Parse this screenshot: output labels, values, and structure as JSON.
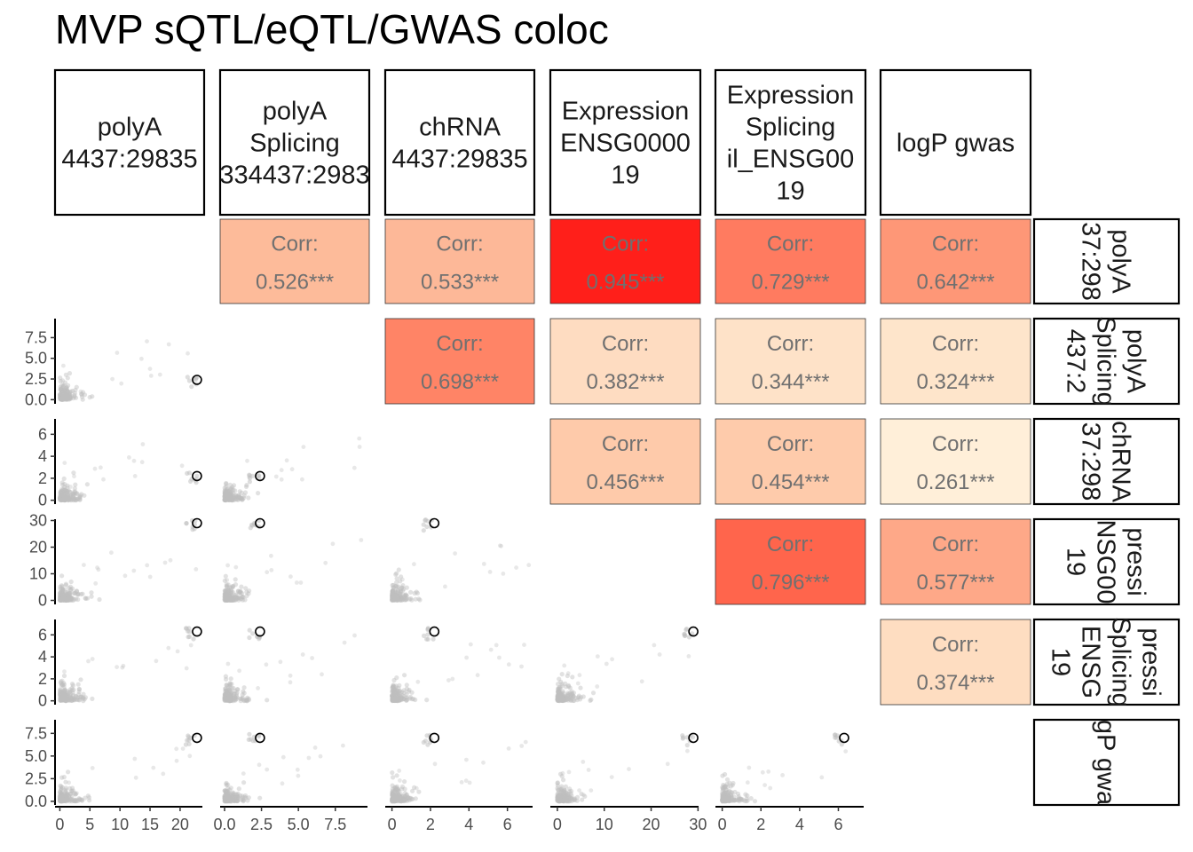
{
  "title": "MVP sQTL/eQTL/GWAS coloc",
  "chart_data": {
    "type": "scatter-matrix",
    "title": "MVP sQTL/eQTL/GWAS coloc",
    "variables": [
      {
        "label_lines": [
          "polyA",
          "4437:29835"
        ]
      },
      {
        "label_lines": [
          "polyA",
          "Splicing",
          "334437:2983"
        ]
      },
      {
        "label_lines": [
          "chRNA",
          "4437:29835"
        ]
      },
      {
        "label_lines": [
          "Expression",
          "ENSG0000",
          "19"
        ]
      },
      {
        "label_lines": [
          "Expression",
          "Splicing",
          "il_ENSG00",
          "19"
        ]
      },
      {
        "label_lines": [
          "logP gwas"
        ]
      }
    ],
    "row_strip_lines": [
      [
        "polyA",
        "37:298"
      ],
      [
        "polyA",
        "Splicing",
        "437:2"
      ],
      [
        "chRNA",
        "37:298"
      ],
      [
        "pressi",
        "NSG00",
        "19"
      ],
      [
        "pressi",
        "Splicing",
        "ENSG",
        "19"
      ],
      [
        "gP gwa"
      ]
    ],
    "upper_label": "Corr:",
    "correlations": [
      {
        "row": 0,
        "col": 1,
        "text": "0.526***",
        "value": 0.526,
        "fill": "#fdbb9a"
      },
      {
        "row": 0,
        "col": 2,
        "text": "0.533***",
        "value": 0.533,
        "fill": "#fdb898"
      },
      {
        "row": 0,
        "col": 3,
        "text": "0.945***",
        "value": 0.945,
        "fill": "#ff1f1a"
      },
      {
        "row": 0,
        "col": 4,
        "text": "0.729***",
        "value": 0.729,
        "fill": "#ff7b60"
      },
      {
        "row": 0,
        "col": 5,
        "text": "0.642***",
        "value": 0.642,
        "fill": "#fe9777"
      },
      {
        "row": 1,
        "col": 2,
        "text": "0.698***",
        "value": 0.698,
        "fill": "#ff8466"
      },
      {
        "row": 1,
        "col": 3,
        "text": "0.382***",
        "value": 0.382,
        "fill": "#fedcc1"
      },
      {
        "row": 1,
        "col": 4,
        "text": "0.344***",
        "value": 0.344,
        "fill": "#fee2c8"
      },
      {
        "row": 1,
        "col": 5,
        "text": "0.324***",
        "value": 0.324,
        "fill": "#fee5cb"
      },
      {
        "row": 2,
        "col": 3,
        "text": "0.456***",
        "value": 0.456,
        "fill": "#fecaaa"
      },
      {
        "row": 2,
        "col": 4,
        "text": "0.454***",
        "value": 0.454,
        "fill": "#fecbab"
      },
      {
        "row": 2,
        "col": 5,
        "text": "0.261***",
        "value": 0.261,
        "fill": "#ffefd9"
      },
      {
        "row": 3,
        "col": 4,
        "text": "0.796***",
        "value": 0.796,
        "fill": "#ff654c"
      },
      {
        "row": 3,
        "col": 5,
        "text": "0.577***",
        "value": 0.577,
        "fill": "#fea888"
      },
      {
        "row": 4,
        "col": 5,
        "text": "0.374***",
        "value": 0.374,
        "fill": "#feddc1"
      }
    ],
    "axes": {
      "x": [
        {
          "col": 0,
          "range": [
            -0.8,
            24
          ],
          "ticks": [
            0,
            5,
            10,
            15,
            20
          ],
          "tick_labels": [
            "0",
            "5",
            "10",
            "15",
            "20"
          ]
        },
        {
          "col": 1,
          "range": [
            -0.3,
            9.8
          ],
          "ticks": [
            0,
            2.5,
            5,
            7.5
          ],
          "tick_labels": [
            "0.0",
            "2.5",
            "5.0",
            "7.5"
          ]
        },
        {
          "col": 2,
          "range": [
            -0.35,
            7.4
          ],
          "ticks": [
            0,
            2,
            4,
            6
          ],
          "tick_labels": [
            "0",
            "2",
            "4",
            "6"
          ]
        },
        {
          "col": 3,
          "range": [
            -1.5,
            30.5
          ],
          "ticks": [
            0,
            10,
            20,
            30
          ],
          "tick_labels": [
            "0",
            "10",
            "20",
            "30"
          ]
        },
        {
          "col": 4,
          "range": [
            -0.35,
            7.4
          ],
          "ticks": [
            0,
            2,
            4,
            6
          ],
          "tick_labels": [
            "0",
            "2",
            "4",
            "6"
          ]
        }
      ],
      "y": [
        {
          "row": 1,
          "range": [
            -0.5,
            9.8
          ],
          "ticks": [
            0,
            2.5,
            5,
            7.5
          ],
          "tick_labels": [
            "0.0",
            "2.5",
            "5.0",
            "7.5"
          ]
        },
        {
          "row": 2,
          "range": [
            -0.35,
            7.4
          ],
          "ticks": [
            0,
            2,
            4,
            6
          ],
          "tick_labels": [
            "0",
            "2",
            "4",
            "6"
          ]
        },
        {
          "row": 3,
          "range": [
            -1.5,
            30.5
          ],
          "ticks": [
            0,
            10,
            20,
            30
          ],
          "tick_labels": [
            "0",
            "10",
            "20",
            "30"
          ]
        },
        {
          "row": 4,
          "range": [
            -0.35,
            7.4
          ],
          "ticks": [
            0,
            2,
            4,
            6
          ],
          "tick_labels": [
            "0",
            "2",
            "4",
            "6"
          ]
        },
        {
          "row": 5,
          "range": [
            -0.4,
            9.0
          ],
          "ticks": [
            0,
            2.5,
            5,
            7.5
          ],
          "tick_labels": [
            "0.0",
            "2.5",
            "5.0",
            "7.5"
          ]
        }
      ]
    },
    "lead_snp": [
      22.8,
      2.4,
      2.2,
      29.0,
      6.3,
      7.0
    ],
    "variable_max": [
      23,
      9.5,
      7.2,
      29.5,
      7.2,
      8.2
    ],
    "point_color": "#bebebe",
    "lead_point_style": "open black circle",
    "grid": false
  }
}
